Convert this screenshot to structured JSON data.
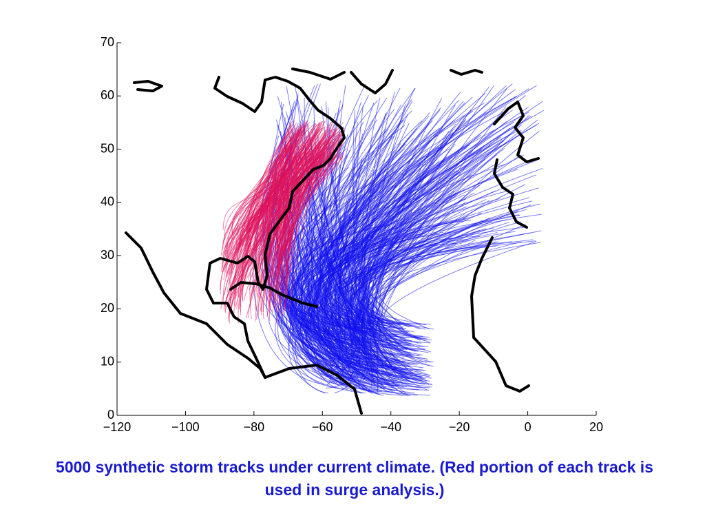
{
  "chart_data": {
    "type": "map",
    "xlim": [
      -120,
      20
    ],
    "ylim": [
      0,
      70
    ],
    "xticks": [
      {
        "value": -120,
        "label": "−120"
      },
      {
        "value": -100,
        "label": "−100"
      },
      {
        "value": -80,
        "label": "−80"
      },
      {
        "value": -60,
        "label": "−60"
      },
      {
        "value": -40,
        "label": "−40"
      },
      {
        "value": -20,
        "label": "−20"
      },
      0,
      20
    ],
    "yticks": [
      0,
      10,
      20,
      30,
      40,
      50,
      60,
      70
    ]
  },
  "caption": "5000 synthetic storm tracks under current climate. (Red portion of each track is used in surge analysis.)"
}
